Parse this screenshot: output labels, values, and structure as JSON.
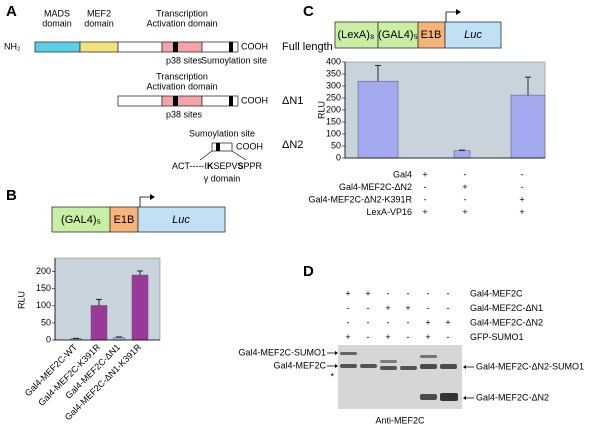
{
  "panel_a": {
    "label": "A",
    "full_length": {
      "name": "Full length",
      "nh2": "NH₂",
      "cooh": "COOH",
      "mads": [
        "MADS",
        "domain"
      ],
      "mef2": [
        "MEF2",
        "domain"
      ],
      "tad": [
        "Transcription",
        "Activation domain"
      ],
      "p38": "p38 sites",
      "sumo": "Sumoylation site"
    },
    "dn1": {
      "name": "ΔN1",
      "cooh": "COOH",
      "tad": [
        "Transcription",
        "Activation domain"
      ],
      "p38": "p38 sites"
    },
    "dn2": {
      "name": "ΔN2",
      "cooh": "COOH",
      "sumo": "Sumoylation site",
      "seq": [
        "ACT-----I",
        "K",
        "SEPV",
        "S",
        "PPR"
      ],
      "gamma": "γ domain"
    }
  },
  "chart_data": [
    {
      "type": "bar",
      "panel": "B",
      "construct": [
        "(GAL4)₅",
        "E1B",
        "Luc"
      ],
      "ylabel": "RLU",
      "categories": [
        "Gal4-MEF2C-WT",
        "Gal4-MEF2C-K391R",
        "Gal4-MEF2C-ΔN1",
        "Gal4-MEF2C-ΔN1-K391R"
      ],
      "values": [
        4,
        101,
        7,
        190
      ],
      "errors": [
        1,
        18,
        2,
        12
      ],
      "colors": [
        "#aab3f2",
        "#993a99",
        "#aab3f2",
        "#993a99"
      ],
      "ylim": [
        0,
        240
      ],
      "yticks": [
        0,
        50,
        100,
        150,
        200
      ]
    },
    {
      "type": "bar",
      "panel": "C",
      "construct": [
        "(LexA)₈",
        "(GAL4)₅",
        "E1B",
        "Luc"
      ],
      "ylabel": "RLU",
      "values": [
        320,
        30,
        262
      ],
      "errors": [
        65,
        3,
        75
      ],
      "color": "#a3aaf0",
      "ylim": [
        0,
        400
      ],
      "yticks": [
        0,
        50,
        100,
        150,
        200,
        250,
        300,
        350,
        400
      ],
      "table": [
        {
          "label": "Gal4",
          "signs": [
            "+",
            "-",
            "-"
          ]
        },
        {
          "label": "Gal4-MEF2C-ΔN2",
          "signs": [
            "-",
            "+",
            "-"
          ]
        },
        {
          "label": "Gal4-MEF2C-ΔN2-K391R",
          "signs": [
            "-",
            "-",
            "+"
          ]
        },
        {
          "label": "LexA-VP16",
          "signs": [
            "+",
            "+",
            "+"
          ]
        }
      ]
    }
  ],
  "panel_d": {
    "label": "D",
    "rows": [
      {
        "label": "Gal4-MEF2C",
        "signs": [
          "+",
          "+",
          "-",
          "-",
          "-",
          "-"
        ]
      },
      {
        "label": "Gal4-MEF2C-ΔN1",
        "signs": [
          "-",
          "-",
          "+",
          "+",
          "-",
          "-"
        ]
      },
      {
        "label": "Gal4-MEF2C-ΔN2",
        "signs": [
          "-",
          "-",
          "-",
          "-",
          "+",
          "+"
        ]
      },
      {
        "label": "GFP-SUMO1",
        "signs": [
          "+",
          "-",
          "+",
          "-",
          "+",
          "-"
        ]
      }
    ],
    "left_labels": [
      "Gal4-MEF2C-SUMO1",
      "Gal4-MEF2C",
      "*"
    ],
    "right_labels": [
      "Gal4-MEF2C-ΔN2-SUMO1",
      "Gal4-MEF2C-ΔN2"
    ],
    "antibody": "Anti-MEF2C"
  }
}
